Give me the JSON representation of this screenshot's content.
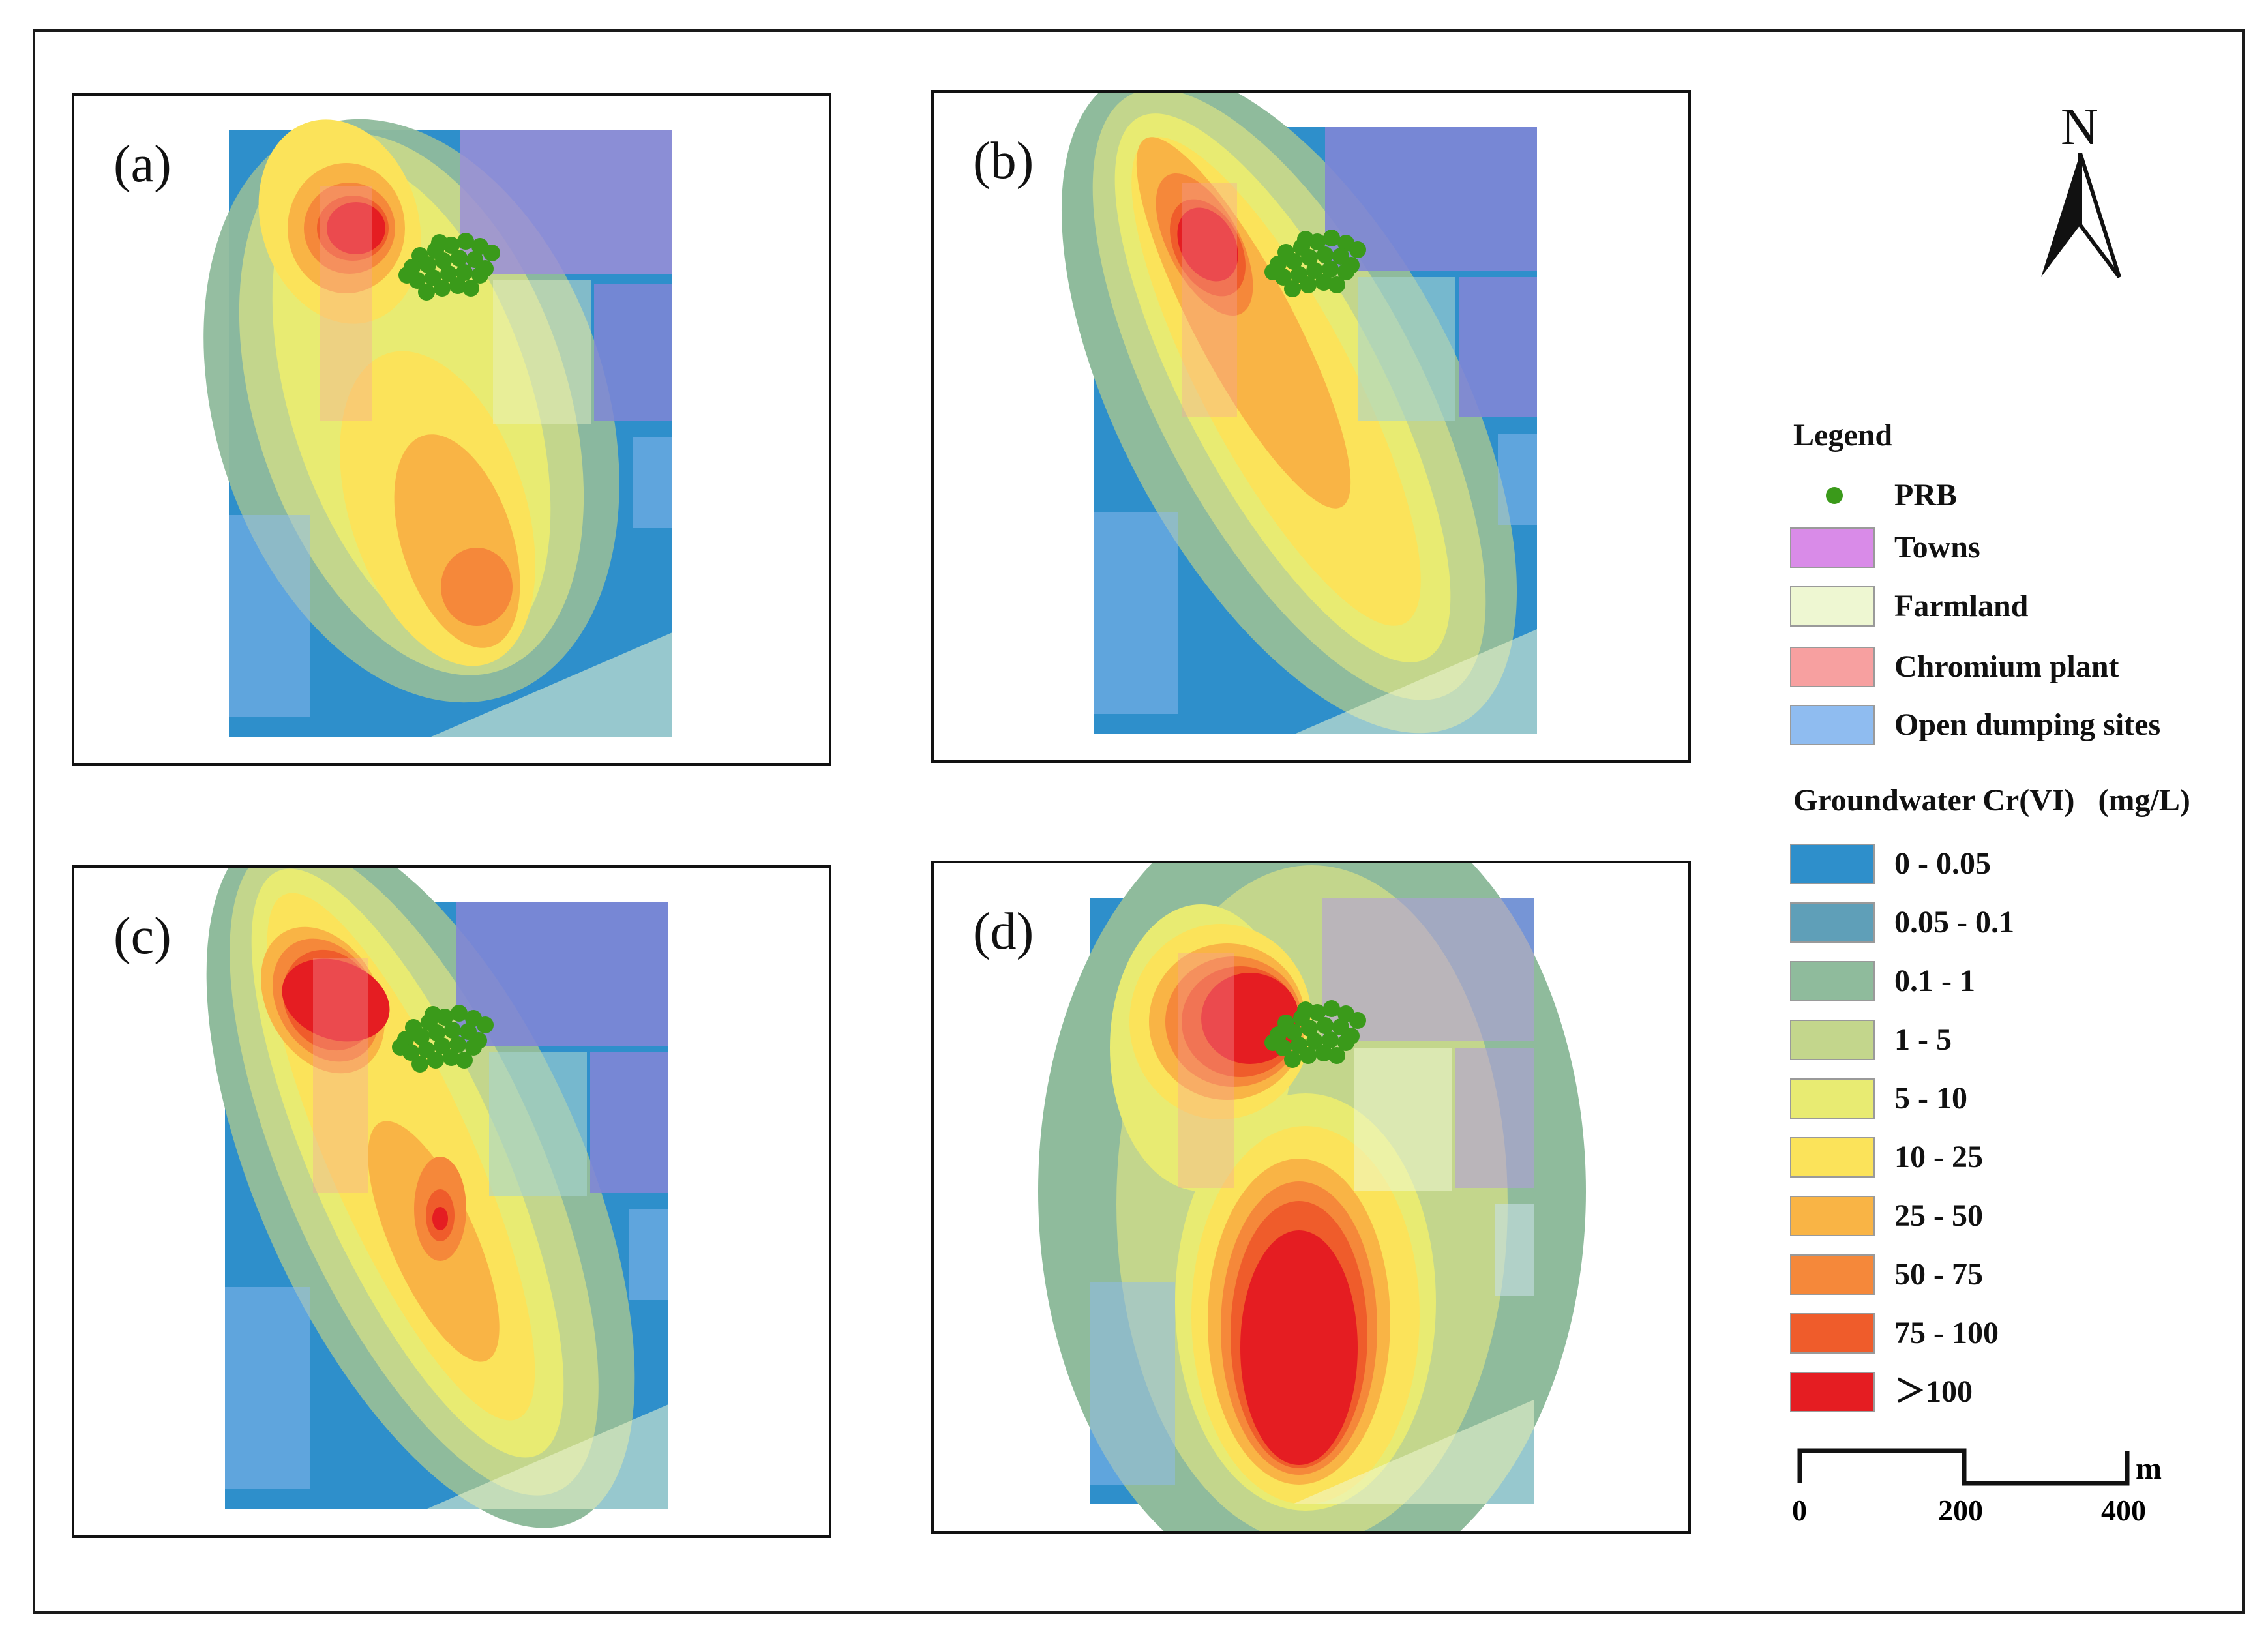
{
  "figure": {
    "panels": [
      {
        "id": "a",
        "label": "(a)"
      },
      {
        "id": "b",
        "label": "(b)"
      },
      {
        "id": "c",
        "label": "(c)"
      },
      {
        "id": "d",
        "label": "(d)"
      }
    ]
  },
  "north_arrow": {
    "label": "N"
  },
  "legend": {
    "title": "Legend",
    "features": [
      {
        "label": "PRB",
        "color": "#3a9a1a",
        "kind": "dot"
      },
      {
        "label": "Towns",
        "color": "#d98be8",
        "kind": "box"
      },
      {
        "label": "Farmland",
        "color": "#eef7d2",
        "kind": "box"
      },
      {
        "label": "Chromium plant",
        "color": "#f7a0a0",
        "kind": "box"
      },
      {
        "label": "Open dumping sites",
        "color": "#8fbcf0",
        "kind": "box"
      }
    ],
    "classes_title": "Groundwater Cr(VI)   (mg/L)",
    "classes": [
      {
        "label": "0 - 0.05",
        "color": "#2e8fcb"
      },
      {
        "label": "0.05 - 0.1",
        "color": "#5f9fb8"
      },
      {
        "label": "0.1 - 1",
        "color": "#8fbb9c"
      },
      {
        "label": "1 - 5",
        "color": "#c3d68c"
      },
      {
        "label": "5 - 10",
        "color": "#e8eb72"
      },
      {
        "label": "10 - 25",
        "color": "#fbe35a"
      },
      {
        "label": "25 - 50",
        "color": "#f9b445"
      },
      {
        "label": "50 - 75",
        "color": "#f5883a"
      },
      {
        "label": "75 - 100",
        "color": "#ef5c2b"
      },
      {
        "label": "＞100",
        "color": "#e51d22"
      }
    ]
  },
  "scale_bar": {
    "ticks": [
      "0",
      "200",
      "400"
    ],
    "unit": "m"
  }
}
